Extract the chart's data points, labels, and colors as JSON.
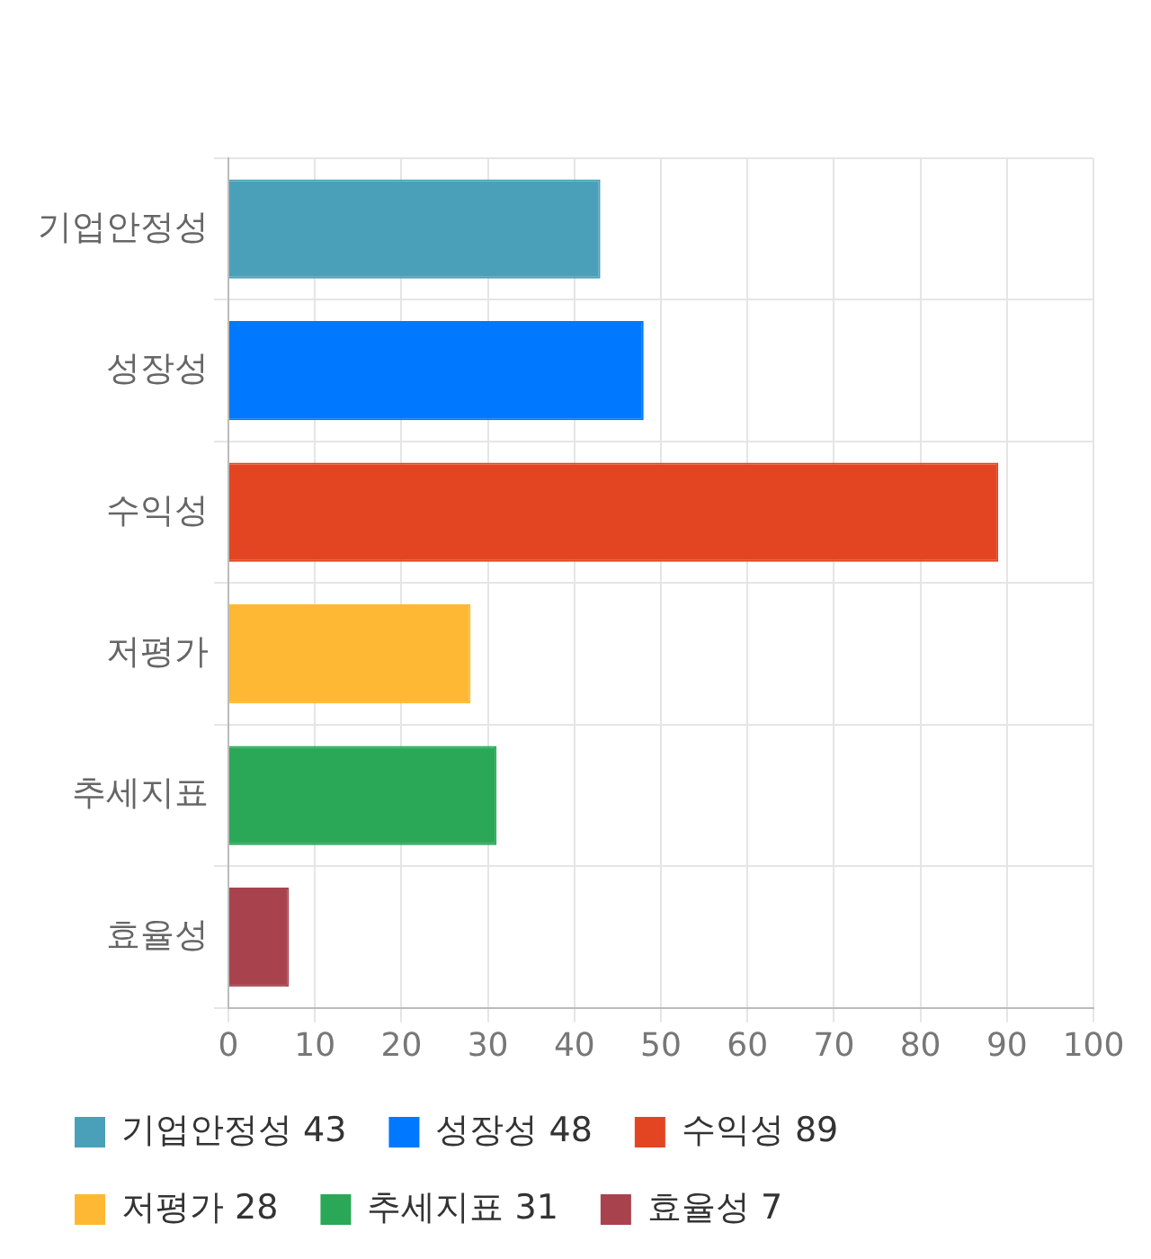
{
  "chart_data": {
    "type": "bar",
    "orientation": "horizontal",
    "categories": [
      "기업안정성",
      "성장성",
      "수익성",
      "저평가",
      "추세지표",
      "효율성"
    ],
    "series": [
      {
        "name": "기업안정성 43",
        "color": "#4aa0b8",
        "values": [
          43,
          null,
          null,
          null,
          null,
          null
        ]
      },
      {
        "name": "성장성 48",
        "color": "#0078ff",
        "values": [
          null,
          48,
          null,
          null,
          null,
          null
        ]
      },
      {
        "name": "수익성 89",
        "color": "#e34522",
        "values": [
          null,
          null,
          89,
          null,
          null,
          null
        ]
      },
      {
        "name": "저평가 28",
        "color": "#ffb833",
        "values": [
          null,
          null,
          null,
          28,
          null,
          null
        ]
      },
      {
        "name": "추세지표 31",
        "color": "#2aa857",
        "values": [
          null,
          null,
          null,
          null,
          31,
          null
        ]
      },
      {
        "name": "효율성 7",
        "color": "#a8434e",
        "values": [
          null,
          null,
          null,
          null,
          null,
          7
        ]
      }
    ],
    "xlim": [
      0,
      100
    ],
    "xticks": [
      0,
      10,
      20,
      30,
      40,
      50,
      60,
      70,
      80,
      90,
      100
    ],
    "grid": true,
    "legend": "bottom"
  }
}
